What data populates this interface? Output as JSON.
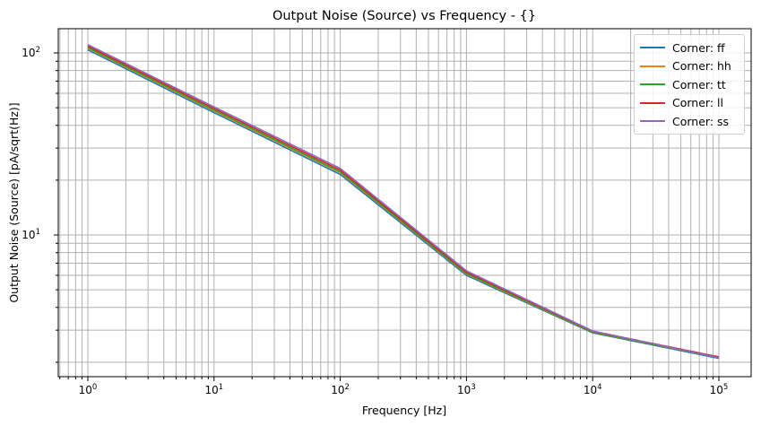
{
  "chart_data": {
    "type": "line",
    "title": "Output Noise (Source) vs Frequency - {}",
    "xlabel": "Frequency [Hz]",
    "ylabel": "Output Noise (Source) [pA/sqrt(Hz)]",
    "xscale": "log",
    "yscale": "log",
    "xlim": [
      0.6,
      170000
    ],
    "ylim": [
      1.67,
      136
    ],
    "grid": true,
    "grid_which": "both",
    "legend_position": "upper right",
    "x_tick_labels": [
      "10^0",
      "10^1",
      "10^2",
      "10^3",
      "10^4",
      "10^5"
    ],
    "y_tick_labels": [
      "10^1",
      "10^2"
    ],
    "x": [
      1,
      10,
      100,
      1000,
      10000,
      100000
    ],
    "series": [
      {
        "name": "Corner: ff",
        "color": "#1f77b4",
        "values": [
          104,
          47,
          21.5,
          6.0,
          2.9,
          2.1
        ]
      },
      {
        "name": "Corner: hh",
        "color": "#ff7f0e",
        "values": [
          106,
          48,
          22,
          6.1,
          2.92,
          2.12
        ]
      },
      {
        "name": "Corner: tt",
        "color": "#2ca02c",
        "values": [
          107,
          48.5,
          22.2,
          6.15,
          2.93,
          2.12
        ]
      },
      {
        "name": "Corner: ll",
        "color": "#d62728",
        "values": [
          109,
          49.5,
          22.7,
          6.25,
          2.96,
          2.14
        ]
      },
      {
        "name": "Corner: ss",
        "color": "#9467bd",
        "values": [
          111,
          50.5,
          23.2,
          6.35,
          2.97,
          2.12
        ]
      }
    ]
  },
  "title": "Output Noise (Source) vs Frequency - {}",
  "xlabel": "Frequency [Hz]",
  "ylabel": "Output Noise (Source) [pA/sqrt(Hz)]",
  "legend": [
    {
      "label": "Corner: ff",
      "color": "#1f77b4"
    },
    {
      "label": "Corner: hh",
      "color": "#ff7f0e"
    },
    {
      "label": "Corner: tt",
      "color": "#2ca02c"
    },
    {
      "label": "Corner: ll",
      "color": "#d62728"
    },
    {
      "label": "Corner: ss",
      "color": "#9467bd"
    }
  ]
}
